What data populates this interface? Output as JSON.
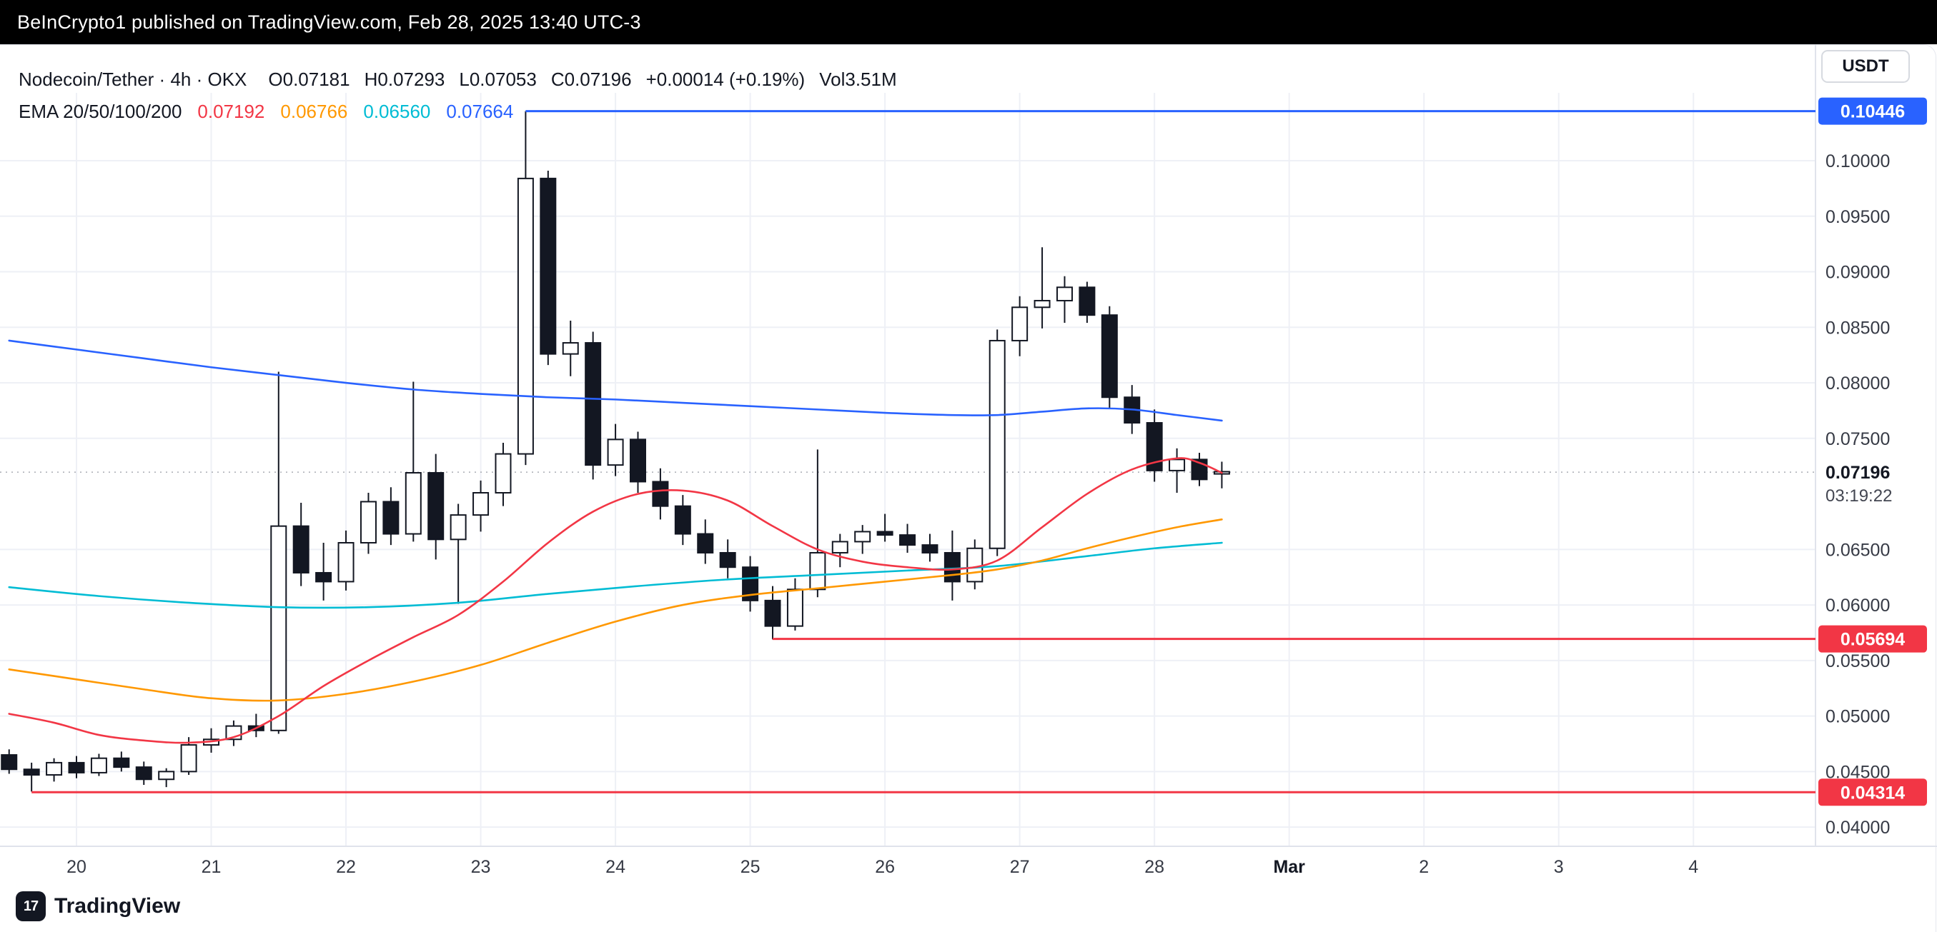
{
  "banner": {
    "text": "BeInCrypto1 published on TradingView.com, Feb 28, 2025 13:40 UTC-3"
  },
  "header": {
    "title": "Nodecoin/Tether · 4h · OKX",
    "open": "O0.07181",
    "high": "H0.07293",
    "low": "L0.07053",
    "close": "C0.07196",
    "change": "+0.00014 (+0.19%)",
    "volume": "Vol3.51M",
    "currency_button": "USDT",
    "ema_label": "EMA 20/50/100/200",
    "ema_values": [
      {
        "value": "0.07192",
        "color": "#F23645"
      },
      {
        "value": "0.06766",
        "color": "#FF9800"
      },
      {
        "value": "0.06560",
        "color": "#00BCD4"
      },
      {
        "value": "0.07664",
        "color": "#2962FF"
      }
    ]
  },
  "footer": {
    "logo_glyph": "17",
    "logo_text": "TradingView"
  },
  "chart_data": {
    "type": "candlestick",
    "symbol": "Nodecoin/Tether",
    "interval": "4h",
    "exchange": "OKX",
    "up_color": "#FFFFFF",
    "down_color": "#131722",
    "grid": true,
    "ylim": [
      0.0395,
      0.1056
    ],
    "first_candle_time": "Feb 19 12:00, 4h per candle",
    "candles_ohlc": [
      [
        0.0465,
        0.047,
        0.0448,
        0.0452
      ],
      [
        0.0452,
        0.0458,
        0.0432,
        0.0447
      ],
      [
        0.0447,
        0.0462,
        0.0441,
        0.0458
      ],
      [
        0.0458,
        0.0464,
        0.0444,
        0.0449
      ],
      [
        0.0449,
        0.0466,
        0.0446,
        0.0462
      ],
      [
        0.0462,
        0.0468,
        0.045,
        0.0454
      ],
      [
        0.0454,
        0.0459,
        0.0438,
        0.0443
      ],
      [
        0.0443,
        0.0453,
        0.0436,
        0.045
      ],
      [
        0.045,
        0.0481,
        0.0447,
        0.0474
      ],
      [
        0.0474,
        0.0489,
        0.0467,
        0.0479
      ],
      [
        0.0479,
        0.0496,
        0.0473,
        0.0491
      ],
      [
        0.0491,
        0.0502,
        0.0481,
        0.0487
      ],
      [
        0.0487,
        0.081,
        0.0484,
        0.0671
      ],
      [
        0.0671,
        0.0692,
        0.0617,
        0.0629
      ],
      [
        0.0629,
        0.0656,
        0.0604,
        0.0621
      ],
      [
        0.0621,
        0.0667,
        0.0613,
        0.0656
      ],
      [
        0.0656,
        0.0701,
        0.0646,
        0.0693
      ],
      [
        0.0693,
        0.0706,
        0.0654,
        0.0664
      ],
      [
        0.0664,
        0.0801,
        0.0657,
        0.0719
      ],
      [
        0.0719,
        0.0736,
        0.0641,
        0.0659
      ],
      [
        0.0659,
        0.0691,
        0.0601,
        0.0681
      ],
      [
        0.0681,
        0.0712,
        0.0666,
        0.0701
      ],
      [
        0.0701,
        0.0746,
        0.0689,
        0.0736
      ],
      [
        0.0736,
        0.10446,
        0.0726,
        0.0984
      ],
      [
        0.0984,
        0.0991,
        0.0816,
        0.0826
      ],
      [
        0.0826,
        0.0856,
        0.0806,
        0.0836
      ],
      [
        0.0836,
        0.0846,
        0.0713,
        0.0726
      ],
      [
        0.0726,
        0.0763,
        0.0716,
        0.0749
      ],
      [
        0.0749,
        0.0756,
        0.0701,
        0.0711
      ],
      [
        0.0711,
        0.0723,
        0.0677,
        0.0689
      ],
      [
        0.0689,
        0.0699,
        0.0654,
        0.0664
      ],
      [
        0.0664,
        0.0677,
        0.0637,
        0.0647
      ],
      [
        0.0647,
        0.0659,
        0.0624,
        0.0634
      ],
      [
        0.0634,
        0.0644,
        0.0594,
        0.0604
      ],
      [
        0.0604,
        0.0617,
        0.0569,
        0.0581
      ],
      [
        0.0581,
        0.0624,
        0.0577,
        0.0614
      ],
      [
        0.0614,
        0.074,
        0.0607,
        0.0647
      ],
      [
        0.0647,
        0.0664,
        0.0634,
        0.0657
      ],
      [
        0.0657,
        0.0672,
        0.0646,
        0.0666
      ],
      [
        0.0666,
        0.0682,
        0.0657,
        0.0663
      ],
      [
        0.0663,
        0.0673,
        0.0647,
        0.0654
      ],
      [
        0.0654,
        0.0664,
        0.0639,
        0.0647
      ],
      [
        0.0647,
        0.0667,
        0.0604,
        0.0621
      ],
      [
        0.0621,
        0.0659,
        0.0614,
        0.0651
      ],
      [
        0.0651,
        0.0848,
        0.0644,
        0.0838
      ],
      [
        0.0838,
        0.0878,
        0.0824,
        0.0868
      ],
      [
        0.0868,
        0.0922,
        0.0849,
        0.0874
      ],
      [
        0.0874,
        0.0896,
        0.0854,
        0.0886
      ],
      [
        0.0886,
        0.0891,
        0.0854,
        0.0861
      ],
      [
        0.0861,
        0.0869,
        0.0777,
        0.0787
      ],
      [
        0.0787,
        0.0798,
        0.0754,
        0.0764
      ],
      [
        0.0764,
        0.0776,
        0.0711,
        0.0721
      ],
      [
        0.0721,
        0.0741,
        0.0701,
        0.0731
      ],
      [
        0.0731,
        0.0737,
        0.0707,
        0.0713
      ],
      [
        0.0718,
        0.0729,
        0.0705,
        0.072
      ]
    ],
    "price_ticks": [
      {
        "label": "0.10000",
        "value": 0.1
      },
      {
        "label": "0.09500",
        "value": 0.095
      },
      {
        "label": "0.09000",
        "value": 0.09
      },
      {
        "label": "0.08500",
        "value": 0.085
      },
      {
        "label": "0.08000",
        "value": 0.08
      },
      {
        "label": "0.07500",
        "value": 0.075
      },
      {
        "label": "0.06500",
        "value": 0.065
      },
      {
        "label": "0.06000",
        "value": 0.06
      },
      {
        "label": "0.05500",
        "value": 0.055
      },
      {
        "label": "0.05000",
        "value": 0.05
      },
      {
        "label": "0.04500",
        "value": 0.045
      },
      {
        "label": "0.04000",
        "value": 0.04
      }
    ],
    "time_ticks": [
      {
        "label": "20",
        "index": 3,
        "bold": false
      },
      {
        "label": "21",
        "index": 9,
        "bold": false
      },
      {
        "label": "22",
        "index": 15,
        "bold": false
      },
      {
        "label": "23",
        "index": 21,
        "bold": false
      },
      {
        "label": "24",
        "index": 27,
        "bold": false
      },
      {
        "label": "25",
        "index": 33,
        "bold": false
      },
      {
        "label": "26",
        "index": 39,
        "bold": false
      },
      {
        "label": "27",
        "index": 45,
        "bold": false
      },
      {
        "label": "28",
        "index": 51,
        "bold": false
      },
      {
        "label": "Mar",
        "index": 57,
        "bold": true
      },
      {
        "label": "2",
        "index": 63,
        "bold": false
      },
      {
        "label": "3",
        "index": 69,
        "bold": false
      },
      {
        "label": "4",
        "index": 75,
        "bold": false
      }
    ],
    "current_price": {
      "label": "0.07196",
      "value": 0.07196,
      "countdown": "03:19:22"
    },
    "levels": [
      {
        "label": "0.10446",
        "value": 0.10446,
        "color": "#2962FF",
        "start_index": 23
      },
      {
        "label": "0.05694",
        "value": 0.05694,
        "color": "#F23645",
        "start_index": 34
      },
      {
        "label": "0.04314",
        "value": 0.04314,
        "color": "#F23645",
        "start_index": 1
      }
    ],
    "emas": [
      {
        "name": "EMA 200",
        "color": "#2962FF",
        "last_value": 0.07664,
        "points": [
          [
            0,
            0.0838
          ],
          [
            3,
            0.083
          ],
          [
            6,
            0.0822
          ],
          [
            9,
            0.0814
          ],
          [
            12,
            0.0807
          ],
          [
            15,
            0.08
          ],
          [
            18,
            0.0794
          ],
          [
            21,
            0.079
          ],
          [
            24,
            0.0787
          ],
          [
            27,
            0.0785
          ],
          [
            30,
            0.0782
          ],
          [
            33,
            0.0779
          ],
          [
            36,
            0.0776
          ],
          [
            39,
            0.0773
          ],
          [
            42,
            0.0771
          ],
          [
            44,
            0.0771
          ],
          [
            46,
            0.0774
          ],
          [
            48,
            0.0777
          ],
          [
            50,
            0.0776
          ],
          [
            52,
            0.0771
          ],
          [
            54,
            0.0766
          ]
        ]
      },
      {
        "name": "EMA 100",
        "color": "#00BCD4",
        "last_value": 0.0656,
        "points": [
          [
            0,
            0.0616
          ],
          [
            4,
            0.0608
          ],
          [
            8,
            0.0602
          ],
          [
            12,
            0.0598
          ],
          [
            16,
            0.0598
          ],
          [
            20,
            0.0602
          ],
          [
            24,
            0.061
          ],
          [
            28,
            0.0617
          ],
          [
            32,
            0.0623
          ],
          [
            36,
            0.0627
          ],
          [
            40,
            0.0631
          ],
          [
            44,
            0.0635
          ],
          [
            48,
            0.0644
          ],
          [
            51,
            0.0651
          ],
          [
            54,
            0.0656
          ]
        ]
      },
      {
        "name": "EMA 50",
        "color": "#FF9800",
        "last_value": 0.06766,
        "points": [
          [
            0,
            0.0542
          ],
          [
            3,
            0.0533
          ],
          [
            6,
            0.0524
          ],
          [
            9,
            0.0516
          ],
          [
            12,
            0.0514
          ],
          [
            15,
            0.052
          ],
          [
            18,
            0.0531
          ],
          [
            21,
            0.0546
          ],
          [
            24,
            0.0566
          ],
          [
            27,
            0.0585
          ],
          [
            30,
            0.06
          ],
          [
            33,
            0.0609
          ],
          [
            36,
            0.0615
          ],
          [
            39,
            0.0621
          ],
          [
            42,
            0.0627
          ],
          [
            44,
            0.0632
          ],
          [
            46,
            0.064
          ],
          [
            48,
            0.0651
          ],
          [
            50,
            0.0661
          ],
          [
            52,
            0.067
          ],
          [
            54,
            0.0677
          ]
        ]
      },
      {
        "name": "EMA 20",
        "color": "#F23645",
        "last_value": 0.07192,
        "points": [
          [
            0,
            0.0502
          ],
          [
            2,
            0.0494
          ],
          [
            4,
            0.0483
          ],
          [
            6,
            0.0478
          ],
          [
            8,
            0.0476
          ],
          [
            10,
            0.0481
          ],
          [
            12,
            0.05
          ],
          [
            14,
            0.0527
          ],
          [
            16,
            0.055
          ],
          [
            18,
            0.0571
          ],
          [
            20,
            0.0591
          ],
          [
            22,
            0.0621
          ],
          [
            24,
            0.0656
          ],
          [
            26,
            0.0684
          ],
          [
            28,
            0.07
          ],
          [
            30,
            0.0703
          ],
          [
            32,
            0.0694
          ],
          [
            34,
            0.0671
          ],
          [
            36,
            0.065
          ],
          [
            38,
            0.0639
          ],
          [
            40,
            0.0634
          ],
          [
            42,
            0.0632
          ],
          [
            44,
            0.064
          ],
          [
            46,
            0.067
          ],
          [
            48,
            0.07
          ],
          [
            50,
            0.0722
          ],
          [
            52,
            0.0732
          ],
          [
            53,
            0.0728
          ],
          [
            54,
            0.0719
          ]
        ]
      }
    ]
  }
}
